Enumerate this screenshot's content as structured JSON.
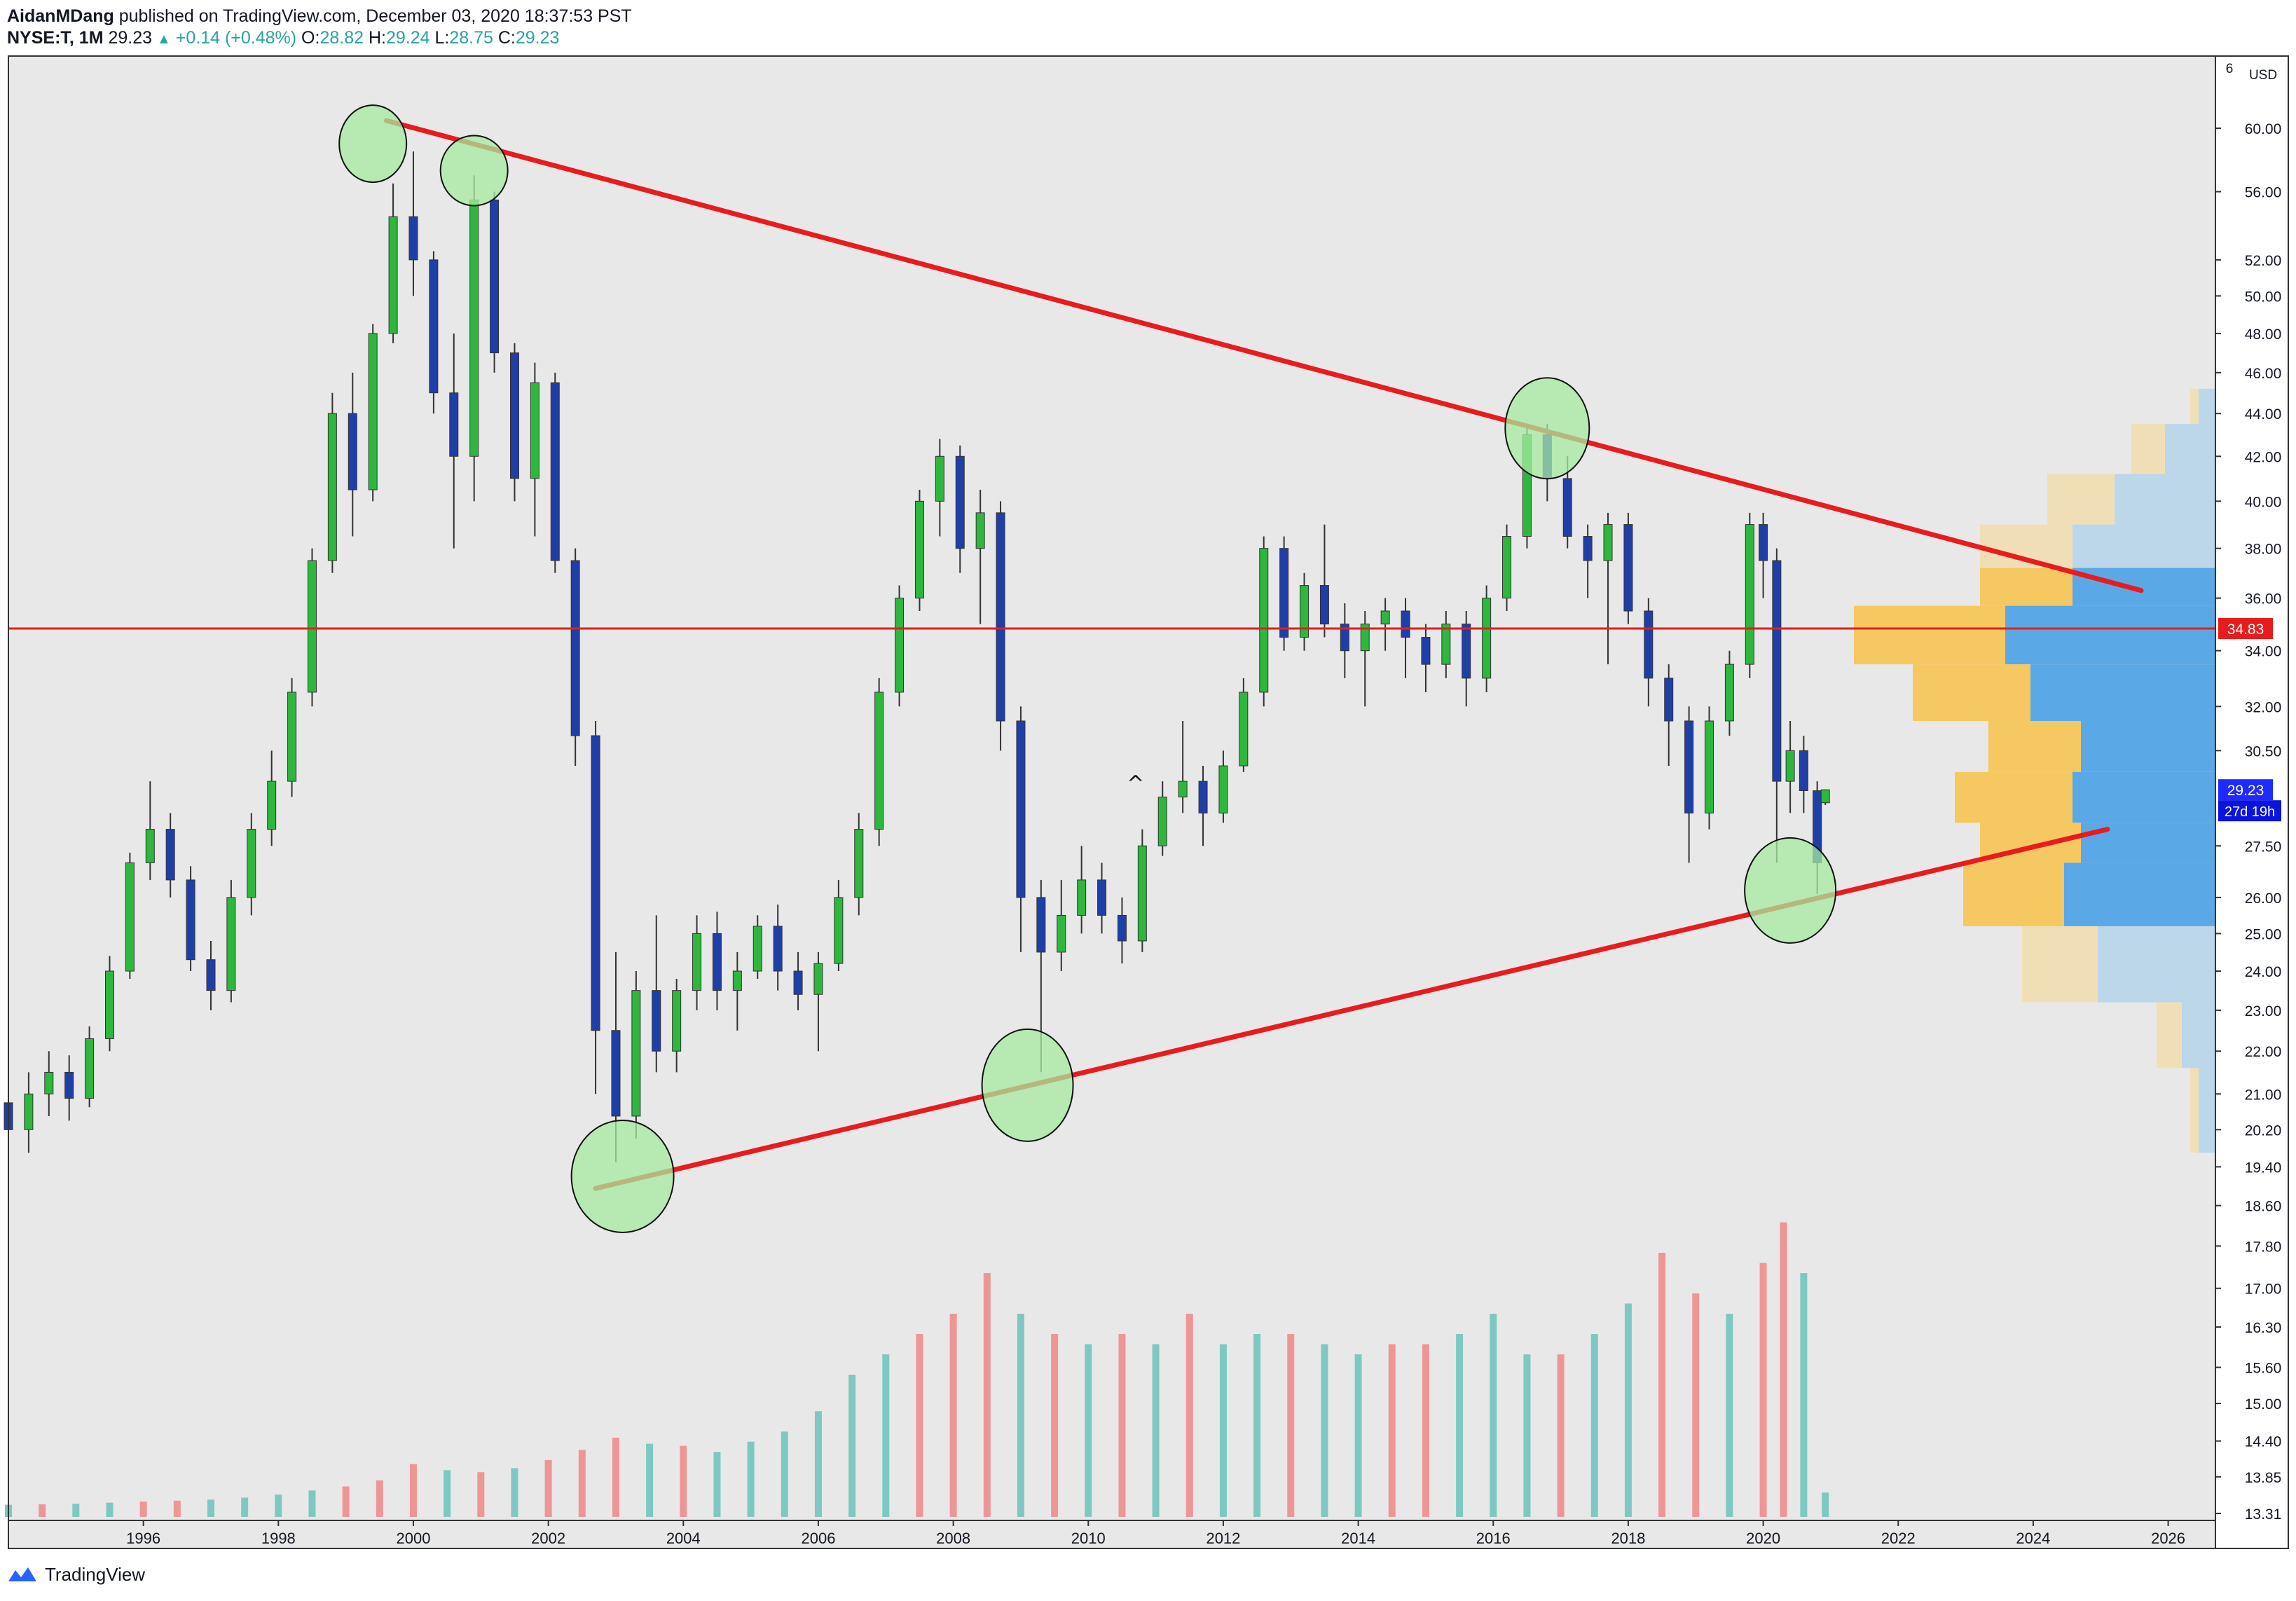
{
  "header": {
    "author": "AidanMDang",
    "published": " published on TradingView.com, December 03, 2020 18:37:53 PST",
    "symbol": "NYSE:T, 1M",
    "last": "29.23",
    "change": "+0.14 (+0.48%)",
    "o_label": "O:",
    "o_value": "28.82",
    "h_label": "H:",
    "h_value": "29.24",
    "l_label": "L:",
    "l_value": "28.75",
    "c_label": "C:",
    "c_value": "29.23"
  },
  "footer": {
    "brand": "TradingView"
  },
  "colors": {
    "plot_bg": "#e8e8e8",
    "bull_body": "#2db83d",
    "bear_body": "#1f3fa8",
    "trendline": "#e81c1c",
    "hline": "#e81c1c",
    "highlight_fill": "#a6eba0",
    "vol_up": "#7dc9c1",
    "vol_down": "#ee9696",
    "vp_yellow": "#f5c862",
    "vp_blue": "#5aa8e6",
    "vp_yellow_light": "#f0dfb6",
    "vp_blue_light": "#bcd6ea"
  },
  "chart_data": {
    "type": "candlestick",
    "symbol": "NYSE:T",
    "interval": "1M",
    "y_axis": {
      "unit": "USD",
      "scale": "log",
      "ticks": [
        "60.00",
        "56.00",
        "52.00",
        "50.00",
        "48.00",
        "46.00",
        "44.00",
        "42.00",
        "40.00",
        "38.00",
        "36.00",
        "34.00",
        "32.00",
        "30.50",
        "27.50",
        "26.00",
        "25.00",
        "24.00",
        "23.00",
        "22.00",
        "21.00",
        "20.20",
        "19.40",
        "18.60",
        "17.80",
        "17.00",
        "16.30",
        "15.60",
        "15.00",
        "14.40",
        "13.85",
        "13.31"
      ],
      "top_label": "6",
      "ylim": [
        13.31,
        60.0
      ]
    },
    "x_axis": {
      "ticks": [
        "1996",
        "1998",
        "2000",
        "2002",
        "2004",
        "2006",
        "2008",
        "2010",
        "2012",
        "2014",
        "2016",
        "2018",
        "2020",
        "2022",
        "2024",
        "2026"
      ],
      "xlim": [
        1994.0,
        2026.7
      ]
    },
    "price_labels": {
      "hline": "34.83",
      "last": "29.23",
      "countdown": "27d 19h"
    },
    "horizontal_line": 34.83,
    "candles": {
      "columns": [
        "t",
        "open",
        "high",
        "low",
        "close"
      ],
      "rows": [
        [
          1994.0,
          20.8,
          21.6,
          19.6,
          20.2
        ],
        [
          1994.3,
          20.2,
          21.5,
          19.7,
          21.0
        ],
        [
          1994.6,
          21.0,
          22.0,
          20.5,
          21.5
        ],
        [
          1994.9,
          21.5,
          21.9,
          20.4,
          20.9
        ],
        [
          1995.2,
          20.9,
          22.6,
          20.7,
          22.3
        ],
        [
          1995.5,
          22.3,
          24.4,
          22.0,
          24.0
        ],
        [
          1995.8,
          24.0,
          27.3,
          23.8,
          27.0
        ],
        [
          1996.1,
          27.0,
          29.5,
          26.5,
          28.0
        ],
        [
          1996.4,
          28.0,
          28.5,
          26.0,
          26.5
        ],
        [
          1996.7,
          26.5,
          26.9,
          24.0,
          24.3
        ],
        [
          1997.0,
          24.3,
          24.8,
          23.0,
          23.5
        ],
        [
          1997.3,
          23.5,
          26.5,
          23.2,
          26.0
        ],
        [
          1997.6,
          26.0,
          28.5,
          25.5,
          28.0
        ],
        [
          1997.9,
          28.0,
          30.5,
          27.5,
          29.5
        ],
        [
          1998.2,
          29.5,
          33.0,
          29.0,
          32.5
        ],
        [
          1998.5,
          32.5,
          38.0,
          32.0,
          37.5
        ],
        [
          1998.8,
          37.5,
          45.0,
          37.0,
          44.0
        ],
        [
          1999.1,
          44.0,
          46.0,
          38.5,
          40.5
        ],
        [
          1999.4,
          40.5,
          48.5,
          40.0,
          48.0
        ],
        [
          1999.7,
          48.0,
          56.5,
          47.5,
          54.5
        ],
        [
          2000.0,
          54.5,
          58.5,
          50.0,
          52.0
        ],
        [
          2000.3,
          52.0,
          52.5,
          44.0,
          45.0
        ],
        [
          2000.6,
          45.0,
          48.0,
          38.0,
          42.0
        ],
        [
          2000.9,
          42.0,
          57.0,
          40.0,
          55.5
        ],
        [
          2001.2,
          55.5,
          56.0,
          46.0,
          47.0
        ],
        [
          2001.5,
          47.0,
          47.5,
          40.0,
          41.0
        ],
        [
          2001.8,
          41.0,
          46.5,
          38.5,
          45.5
        ],
        [
          2002.1,
          45.5,
          46.0,
          37.0,
          37.5
        ],
        [
          2002.4,
          37.5,
          38.0,
          30.0,
          31.0
        ],
        [
          2002.7,
          31.0,
          31.5,
          21.0,
          22.5
        ],
        [
          2003.0,
          22.5,
          24.5,
          19.5,
          20.5
        ],
        [
          2003.3,
          20.5,
          24.0,
          20.0,
          23.5
        ],
        [
          2003.6,
          23.5,
          25.5,
          21.5,
          22.0
        ],
        [
          2003.9,
          22.0,
          23.8,
          21.5,
          23.5
        ],
        [
          2004.2,
          23.5,
          25.5,
          23.0,
          25.0
        ],
        [
          2004.5,
          25.0,
          25.6,
          23.0,
          23.5
        ],
        [
          2004.8,
          23.5,
          24.5,
          22.5,
          24.0
        ],
        [
          2005.1,
          24.0,
          25.5,
          23.8,
          25.2
        ],
        [
          2005.4,
          25.2,
          25.8,
          23.5,
          24.0
        ],
        [
          2005.7,
          24.0,
          24.5,
          23.0,
          23.4
        ],
        [
          2006.0,
          23.4,
          24.5,
          22.0,
          24.2
        ],
        [
          2006.3,
          24.2,
          26.5,
          24.0,
          26.0
        ],
        [
          2006.6,
          26.0,
          28.5,
          25.5,
          28.0
        ],
        [
          2006.9,
          28.0,
          33.0,
          27.5,
          32.5
        ],
        [
          2007.2,
          32.5,
          36.5,
          32.0,
          36.0
        ],
        [
          2007.5,
          36.0,
          40.5,
          35.5,
          40.0
        ],
        [
          2007.8,
          40.0,
          42.8,
          38.5,
          42.0
        ],
        [
          2008.1,
          42.0,
          42.5,
          37.0,
          38.0
        ],
        [
          2008.4,
          38.0,
          40.5,
          35.0,
          39.5
        ],
        [
          2008.7,
          39.5,
          40.0,
          30.5,
          31.5
        ],
        [
          2009.0,
          31.5,
          32.0,
          24.5,
          26.0
        ],
        [
          2009.3,
          26.0,
          26.5,
          21.5,
          24.5
        ],
        [
          2009.6,
          24.5,
          26.5,
          24.0,
          25.5
        ],
        [
          2009.9,
          25.5,
          27.5,
          25.0,
          26.5
        ],
        [
          2010.2,
          26.5,
          27.0,
          25.0,
          25.5
        ],
        [
          2010.5,
          25.5,
          26.0,
          24.2,
          24.8
        ],
        [
          2010.8,
          24.8,
          28.0,
          24.5,
          27.5
        ],
        [
          2011.1,
          27.5,
          29.5,
          27.2,
          29.0
        ],
        [
          2011.4,
          29.0,
          31.5,
          28.5,
          29.5
        ],
        [
          2011.7,
          29.5,
          30.0,
          27.5,
          28.5
        ],
        [
          2012.0,
          28.5,
          30.5,
          28.2,
          30.0
        ],
        [
          2012.3,
          30.0,
          33.0,
          29.8,
          32.5
        ],
        [
          2012.6,
          32.5,
          38.5,
          32.0,
          38.0
        ],
        [
          2012.9,
          38.0,
          38.5,
          34.0,
          34.5
        ],
        [
          2013.2,
          34.5,
          37.0,
          34.0,
          36.5
        ],
        [
          2013.5,
          36.5,
          39.0,
          34.5,
          35.0
        ],
        [
          2013.8,
          35.0,
          35.8,
          33.0,
          34.0
        ],
        [
          2014.1,
          34.0,
          35.5,
          32.0,
          35.0
        ],
        [
          2014.4,
          35.0,
          36.0,
          34.0,
          35.5
        ],
        [
          2014.7,
          35.5,
          36.0,
          33.0,
          34.5
        ],
        [
          2015.0,
          34.5,
          35.0,
          32.5,
          33.5
        ],
        [
          2015.3,
          33.5,
          35.5,
          33.0,
          35.0
        ],
        [
          2015.6,
          35.0,
          35.5,
          32.0,
          33.0
        ],
        [
          2015.9,
          33.0,
          36.5,
          32.5,
          36.0
        ],
        [
          2016.2,
          36.0,
          39.0,
          35.5,
          38.5
        ],
        [
          2016.5,
          38.5,
          43.5,
          38.0,
          43.0
        ],
        [
          2016.8,
          43.0,
          43.5,
          40.0,
          41.0
        ],
        [
          2017.1,
          41.0,
          42.0,
          38.0,
          38.5
        ],
        [
          2017.4,
          38.5,
          39.0,
          36.0,
          37.5
        ],
        [
          2017.7,
          37.5,
          39.5,
          33.5,
          39.0
        ],
        [
          2018.0,
          39.0,
          39.5,
          35.0,
          35.5
        ],
        [
          2018.3,
          35.5,
          36.0,
          32.0,
          33.0
        ],
        [
          2018.6,
          33.0,
          33.5,
          30.0,
          31.5
        ],
        [
          2018.9,
          31.5,
          32.0,
          27.0,
          28.5
        ],
        [
          2019.2,
          28.5,
          32.0,
          28.0,
          31.5
        ],
        [
          2019.5,
          31.5,
          34.0,
          31.0,
          33.5
        ],
        [
          2019.8,
          33.5,
          39.5,
          33.0,
          39.0
        ],
        [
          2020.0,
          39.0,
          39.5,
          36.0,
          37.5
        ],
        [
          2020.2,
          37.5,
          38.0,
          27.0,
          29.5
        ],
        [
          2020.4,
          29.5,
          31.5,
          28.5,
          30.5
        ],
        [
          2020.6,
          30.5,
          31.0,
          28.5,
          29.2
        ],
        [
          2020.8,
          29.2,
          29.5,
          26.1,
          27.0
        ],
        [
          2020.92,
          28.82,
          29.24,
          28.75,
          29.23
        ]
      ]
    },
    "volume": {
      "columns": [
        "t",
        "value_millions",
        "direction"
      ],
      "rows": [
        [
          1994.0,
          60,
          "up"
        ],
        [
          1994.5,
          62,
          "down"
        ],
        [
          1995.0,
          65,
          "up"
        ],
        [
          1995.5,
          70,
          "up"
        ],
        [
          1996.0,
          75,
          "down"
        ],
        [
          1996.5,
          80,
          "down"
        ],
        [
          1997.0,
          85,
          "up"
        ],
        [
          1997.5,
          95,
          "up"
        ],
        [
          1998.0,
          110,
          "up"
        ],
        [
          1998.5,
          130,
          "up"
        ],
        [
          1999.0,
          150,
          "down"
        ],
        [
          1999.5,
          180,
          "down"
        ],
        [
          2000.0,
          260,
          "down"
        ],
        [
          2000.5,
          230,
          "up"
        ],
        [
          2001.0,
          220,
          "down"
        ],
        [
          2001.5,
          240,
          "up"
        ],
        [
          2002.0,
          280,
          "down"
        ],
        [
          2002.5,
          330,
          "down"
        ],
        [
          2003.0,
          390,
          "down"
        ],
        [
          2003.5,
          360,
          "up"
        ],
        [
          2004.0,
          350,
          "down"
        ],
        [
          2004.5,
          320,
          "up"
        ],
        [
          2005.0,
          370,
          "up"
        ],
        [
          2005.5,
          420,
          "up"
        ],
        [
          2006.0,
          520,
          "up"
        ],
        [
          2006.5,
          700,
          "up"
        ],
        [
          2007.0,
          800,
          "up"
        ],
        [
          2007.5,
          900,
          "down"
        ],
        [
          2008.0,
          1000,
          "down"
        ],
        [
          2008.5,
          1200,
          "down"
        ],
        [
          2009.0,
          1000,
          "up"
        ],
        [
          2009.5,
          900,
          "down"
        ],
        [
          2010.0,
          850,
          "up"
        ],
        [
          2010.5,
          900,
          "down"
        ],
        [
          2011.0,
          850,
          "up"
        ],
        [
          2011.5,
          1000,
          "down"
        ],
        [
          2012.0,
          850,
          "up"
        ],
        [
          2012.5,
          900,
          "up"
        ],
        [
          2013.0,
          900,
          "down"
        ],
        [
          2013.5,
          850,
          "up"
        ],
        [
          2014.0,
          800,
          "up"
        ],
        [
          2014.5,
          850,
          "down"
        ],
        [
          2015.0,
          850,
          "down"
        ],
        [
          2015.5,
          900,
          "up"
        ],
        [
          2016.0,
          1000,
          "up"
        ],
        [
          2016.5,
          800,
          "up"
        ],
        [
          2017.0,
          800,
          "down"
        ],
        [
          2017.5,
          900,
          "up"
        ],
        [
          2018.0,
          1050,
          "up"
        ],
        [
          2018.5,
          1300,
          "down"
        ],
        [
          2019.0,
          1100,
          "down"
        ],
        [
          2019.5,
          1000,
          "up"
        ],
        [
          2020.0,
          1250,
          "down"
        ],
        [
          2020.3,
          1450,
          "down"
        ],
        [
          2020.6,
          1200,
          "up"
        ],
        [
          2020.92,
          120,
          "up"
        ]
      ]
    },
    "volume_profile": {
      "columns": [
        "price_low",
        "price_high",
        "up_volume",
        "down_volume",
        "in_value_area"
      ],
      "rows": [
        [
          43.5,
          45.2,
          0.01,
          0.02,
          false
        ],
        [
          41.2,
          43.5,
          0.04,
          0.06,
          false
        ],
        [
          39.0,
          41.2,
          0.08,
          0.12,
          false
        ],
        [
          37.2,
          39.0,
          0.11,
          0.17,
          false
        ],
        [
          35.7,
          37.2,
          0.11,
          0.17,
          true
        ],
        [
          33.5,
          35.7,
          0.18,
          0.25,
          true
        ],
        [
          31.5,
          33.5,
          0.14,
          0.22,
          true
        ],
        [
          29.8,
          31.5,
          0.11,
          0.16,
          true
        ],
        [
          28.2,
          29.8,
          0.14,
          0.17,
          true
        ],
        [
          27.0,
          28.2,
          0.12,
          0.16,
          true
        ],
        [
          25.2,
          27.0,
          0.12,
          0.18,
          true
        ],
        [
          23.2,
          25.2,
          0.09,
          0.14,
          false
        ],
        [
          21.6,
          23.2,
          0.03,
          0.04,
          false
        ],
        [
          19.7,
          21.6,
          0.01,
          0.02,
          false
        ]
      ]
    },
    "trendlines": [
      {
        "from": [
          1999.6,
          60.5
        ],
        "to": [
          2025.6,
          36.3
        ]
      },
      {
        "from": [
          2002.7,
          18.95
        ],
        "to": [
          2025.1,
          28.0
        ]
      }
    ],
    "highlight_circles": [
      {
        "at": [
          1999.4,
          59.0
        ]
      },
      {
        "at": [
          2000.9,
          57.3
        ]
      },
      {
        "at": [
          2003.1,
          19.2
        ]
      },
      {
        "at": [
          2009.1,
          21.2
        ]
      },
      {
        "at": [
          2016.8,
          43.3
        ]
      },
      {
        "at": [
          2020.4,
          26.2
        ]
      }
    ],
    "markers": [
      {
        "at": [
          2010.7,
          29.2
        ],
        "symbol": "^"
      }
    ]
  }
}
